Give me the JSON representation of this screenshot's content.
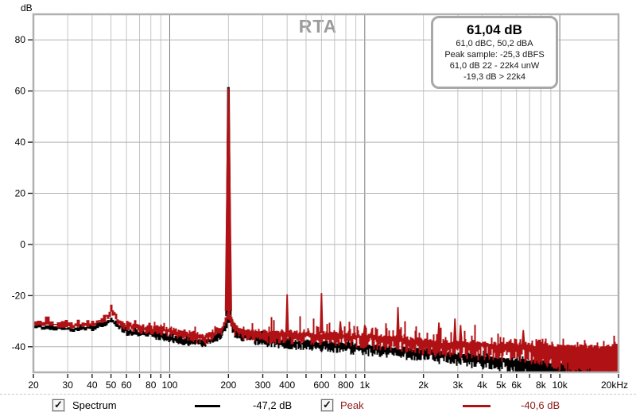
{
  "icons": {
    "checkmark": "✓"
  },
  "info_box": {
    "headline": "61,04 dB",
    "lines": [
      "61,0 dBC, 50,2 dBA",
      "Peak sample: -25,3 dBFS",
      "61,0 dB 22 - 22k4 unW",
      "-19,3 dB > 22k4"
    ]
  },
  "legend": {
    "spectrum": {
      "label": "Spectrum",
      "value": "-47,2 dB",
      "checked": true,
      "color": "#000000"
    },
    "peak": {
      "label": "Peak",
      "value": "-40,6 dB",
      "checked": true,
      "color": "#8e1a1a"
    }
  },
  "chart_data": {
    "type": "line",
    "title": "RTA",
    "ylabel": "dB",
    "x_scale": "log",
    "xlim": [
      20,
      20000
    ],
    "ylim": [
      -50,
      90
    ],
    "grid": true,
    "y_ticks": [
      80,
      60,
      40,
      20,
      0,
      -20,
      -40
    ],
    "x_gridlines": [
      20,
      30,
      40,
      50,
      60,
      70,
      80,
      90,
      100,
      200,
      300,
      400,
      500,
      600,
      700,
      800,
      900,
      1000,
      2000,
      3000,
      4000,
      5000,
      6000,
      7000,
      8000,
      9000,
      10000,
      20000
    ],
    "x_major_gridlines": [
      100,
      1000,
      10000
    ],
    "x_tick_labels": [
      {
        "f": 20,
        "label": "20"
      },
      {
        "f": 30,
        "label": "30"
      },
      {
        "f": 40,
        "label": "40"
      },
      {
        "f": 50,
        "label": "50"
      },
      {
        "f": 60,
        "label": "60"
      },
      {
        "f": 80,
        "label": "80"
      },
      {
        "f": 100,
        "label": "100"
      },
      {
        "f": 200,
        "label": "200"
      },
      {
        "f": 300,
        "label": "300"
      },
      {
        "f": 400,
        "label": "400"
      },
      {
        "f": 600,
        "label": "600"
      },
      {
        "f": 800,
        "label": "800"
      },
      {
        "f": 1000,
        "label": "1k"
      },
      {
        "f": 2000,
        "label": "2k"
      },
      {
        "f": 3000,
        "label": "3k"
      },
      {
        "f": 4000,
        "label": "4k"
      },
      {
        "f": 5000,
        "label": "5k"
      },
      {
        "f": 6000,
        "label": "6k"
      },
      {
        "f": 8000,
        "label": "8k"
      },
      {
        "f": 10000,
        "label": "10k"
      },
      {
        "f": 20000,
        "label": "20kHz"
      }
    ],
    "colors": {
      "grid_minor": "#c6c6c6",
      "grid_major": "#7a7a7a",
      "grid_horizontal": "#b3b3b3",
      "plot_border": "#b0b0b0",
      "tick": "#222222",
      "title": "#9c9c9c"
    },
    "series": [
      {
        "name": "Spectrum",
        "color": "#000000",
        "current_level_db": -47.2,
        "envelope": [
          [
            20,
            -31.5
          ],
          [
            30,
            -32.5
          ],
          [
            40,
            -32
          ],
          [
            50,
            -29
          ],
          [
            60,
            -33.5
          ],
          [
            80,
            -34.5
          ],
          [
            100,
            -36
          ],
          [
            150,
            -38
          ],
          [
            185,
            -34
          ],
          [
            200,
            -28
          ],
          [
            215,
            -34
          ],
          [
            300,
            -37
          ],
          [
            500,
            -38
          ],
          [
            800,
            -39
          ],
          [
            1200,
            -40
          ],
          [
            2000,
            -41.5
          ],
          [
            3000,
            -43
          ],
          [
            5000,
            -44.5
          ],
          [
            8000,
            -46
          ],
          [
            12000,
            -47
          ],
          [
            20000,
            -47.5
          ]
        ],
        "spikes": [
          [
            200,
            61.5
          ]
        ],
        "jitter_db": 1.4,
        "spread_db": [
          0.8,
          5.3
        ]
      },
      {
        "name": "Peak",
        "color": "#b01114",
        "current_level_db": -40.6,
        "envelope": [
          [
            20,
            -30
          ],
          [
            30,
            -31
          ],
          [
            40,
            -30.5
          ],
          [
            48,
            -27
          ],
          [
            50,
            -25
          ],
          [
            55,
            -30.5
          ],
          [
            70,
            -32
          ],
          [
            100,
            -33
          ],
          [
            150,
            -36
          ],
          [
            185,
            -32
          ],
          [
            200,
            -26
          ],
          [
            215,
            -32
          ],
          [
            250,
            -34
          ],
          [
            350,
            -34.5
          ],
          [
            500,
            -34.5
          ],
          [
            700,
            -35
          ],
          [
            1000,
            -35.5
          ],
          [
            1500,
            -36.5
          ],
          [
            2000,
            -37.5
          ],
          [
            3000,
            -38.5
          ],
          [
            5000,
            -39
          ],
          [
            8000,
            -39.5
          ],
          [
            12000,
            -40
          ],
          [
            20000,
            -40
          ]
        ],
        "spikes": [
          [
            200,
            61.04
          ],
          [
            400,
            -19.5
          ],
          [
            600,
            -19.0
          ],
          [
            750,
            -30
          ],
          [
            1000,
            -31.5
          ],
          [
            1480,
            -24.5
          ],
          [
            2400,
            -30.5
          ],
          [
            2900,
            -29.0
          ],
          [
            3100,
            -31.5
          ],
          [
            6500,
            -33.5
          ]
        ],
        "jitter_db": 1.6,
        "spread_db": [
          1.0,
          7.5
        ]
      }
    ]
  }
}
